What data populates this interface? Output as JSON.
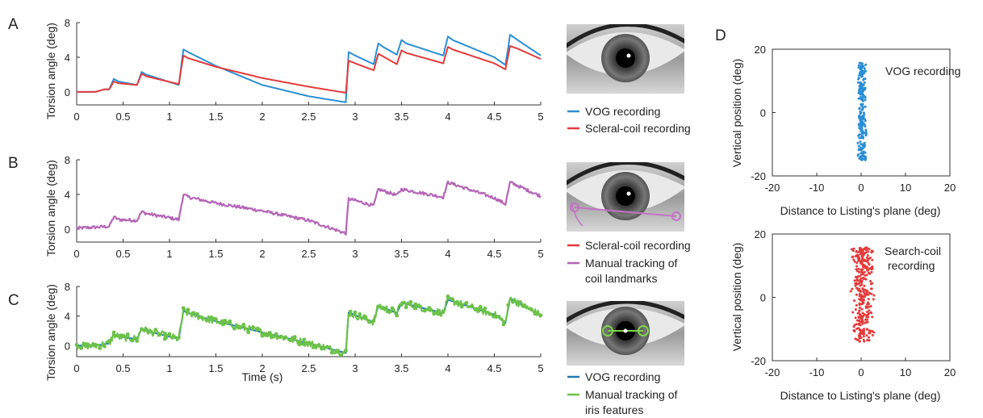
{
  "colors": {
    "vog": "#2b8fd4",
    "coil": "#e33b3b",
    "manual_coil": "#b565b8",
    "manual_iris": "#6cc24a",
    "vog_dark": "#1f78b4",
    "annot_green": "#7fd34a"
  },
  "panels": {
    "A": {
      "letter": "A",
      "ylabel": "Torsion angle (deg)",
      "legend": [
        "VOG recording",
        "Scleral-coil recording"
      ],
      "eye_icon": "eye-photo-icon"
    },
    "B": {
      "letter": "B",
      "ylabel": "Torsion angle (deg)",
      "legend": [
        "Scleral-coil recording",
        "Manual tracking of",
        "coil landmarks"
      ],
      "eye_icon": "eye-photo-coil-landmarks-icon"
    },
    "C": {
      "letter": "C",
      "ylabel": "Torsion angle (deg)",
      "xlabel": "Time (s)",
      "legend": [
        "VOG recording",
        "Manual tracking of",
        "iris features"
      ],
      "eye_icon": "eye-photo-iris-features-icon"
    },
    "D": {
      "letter": "D",
      "top": {
        "ylabel": "Vertical position (deg)",
        "xlabel": "Distance to Listing's plane (deg)",
        "annotation": "VOG recording"
      },
      "bottom": {
        "ylabel": "Vertical position (deg)",
        "xlabel": "Distance to Listing's plane (deg)",
        "annotation": [
          "Search-coil",
          "recording"
        ]
      }
    }
  },
  "chart_data": [
    {
      "type": "line",
      "id": "A",
      "xlim": [
        0,
        5
      ],
      "ylim": [
        -1.5,
        8
      ],
      "xticks": [
        0,
        0.5,
        1,
        1.5,
        2,
        2.5,
        3,
        3.5,
        4,
        4.5,
        5
      ],
      "yticks": [
        0,
        4,
        8
      ],
      "series": [
        {
          "name": "VOG recording",
          "color": "#2b8fd4",
          "x": [
            0,
            0.2,
            0.3,
            0.35,
            0.4,
            0.45,
            0.65,
            0.7,
            0.75,
            1.1,
            1.15,
            1.2,
            1.5,
            2.0,
            2.5,
            2.9,
            2.93,
            3.0,
            3.2,
            3.25,
            3.3,
            3.45,
            3.5,
            3.55,
            3.95,
            4.0,
            4.05,
            4.5,
            4.62,
            4.67,
            4.75,
            5.0
          ],
          "y": [
            0,
            0,
            0.3,
            0.3,
            1.5,
            1.2,
            0.8,
            2.3,
            2.0,
            0.8,
            4.9,
            4.6,
            3.0,
            0.8,
            -0.5,
            -1.2,
            4.6,
            4.2,
            3.2,
            5.6,
            5.2,
            4.3,
            6.0,
            5.6,
            4.2,
            6.4,
            6.0,
            4.0,
            3.1,
            6.6,
            6.0,
            4.2
          ]
        },
        {
          "name": "Scleral-coil recording",
          "color": "#e33b3b",
          "x": [
            0,
            0.2,
            0.3,
            0.35,
            0.4,
            0.45,
            0.65,
            0.7,
            0.75,
            1.1,
            1.15,
            1.2,
            1.5,
            2.0,
            2.5,
            2.9,
            2.93,
            3.0,
            3.2,
            3.25,
            3.3,
            3.45,
            3.5,
            3.55,
            3.95,
            4.0,
            4.05,
            4.5,
            4.62,
            4.67,
            4.75,
            5.0
          ],
          "y": [
            0,
            0,
            0.3,
            0.3,
            1.2,
            1.0,
            0.8,
            2.1,
            1.8,
            0.9,
            4.2,
            3.9,
            2.9,
            1.6,
            0.6,
            -0.1,
            3.6,
            3.3,
            2.5,
            4.4,
            4.1,
            3.2,
            4.8,
            4.5,
            3.3,
            5.2,
            4.9,
            3.3,
            2.6,
            5.3,
            5.0,
            3.8
          ]
        }
      ]
    },
    {
      "type": "line",
      "id": "B",
      "xlim": [
        0,
        5
      ],
      "ylim": [
        -1.5,
        8
      ],
      "xticks": [
        0,
        0.5,
        1,
        1.5,
        2,
        2.5,
        3,
        3.5,
        4,
        4.5,
        5
      ],
      "yticks": [
        0,
        4,
        8
      ],
      "series": [
        {
          "name": "Manual tracking of coil landmarks",
          "color": "#b565b8",
          "x": [
            0,
            0.35,
            0.4,
            0.45,
            0.65,
            0.7,
            0.75,
            1.1,
            1.15,
            1.2,
            1.5,
            2.0,
            2.5,
            2.9,
            2.93,
            3.0,
            3.2,
            3.25,
            3.45,
            3.5,
            3.95,
            4.0,
            4.5,
            4.62,
            4.67,
            5.0
          ],
          "y": [
            0.1,
            0.3,
            1.4,
            1.1,
            1.0,
            2.0,
            1.8,
            1.1,
            4.0,
            3.7,
            3.0,
            2.1,
            1.0,
            -0.5,
            3.5,
            3.3,
            2.7,
            4.6,
            3.9,
            4.6,
            3.7,
            5.4,
            3.6,
            2.9,
            5.4,
            3.8
          ],
          "noise": 0.3
        }
      ]
    },
    {
      "type": "line",
      "id": "C",
      "xlim": [
        0,
        5
      ],
      "ylim": [
        -1.5,
        8
      ],
      "xticks": [
        0,
        0.5,
        1,
        1.5,
        2,
        2.5,
        3,
        3.5,
        4,
        4.5,
        5
      ],
      "yticks": [
        0,
        4,
        8
      ],
      "xlabel": "Time (s)",
      "series": [
        {
          "name": "VOG recording",
          "color": "#1f78b4",
          "x": [
            0,
            0.2,
            0.35,
            0.4,
            0.45,
            0.65,
            0.7,
            0.75,
            1.1,
            1.15,
            1.2,
            1.5,
            2.0,
            2.5,
            2.9,
            2.93,
            3.0,
            3.2,
            3.25,
            3.45,
            3.5,
            3.95,
            4.0,
            4.5,
            4.62,
            4.67,
            5.0
          ],
          "y": [
            0,
            0,
            0.3,
            1.5,
            1.2,
            0.9,
            2.3,
            2.0,
            0.9,
            4.7,
            4.4,
            3.3,
            1.8,
            0.3,
            -1.0,
            4.5,
            4.1,
            3.2,
            5.4,
            4.4,
            5.8,
            4.4,
            6.2,
            4.2,
            3.1,
            6.4,
            4.1
          ]
        },
        {
          "name": "Manual tracking of iris features",
          "color": "#6cc24a",
          "x": [
            0,
            0.2,
            0.35,
            0.4,
            0.45,
            0.65,
            0.7,
            0.75,
            1.1,
            1.15,
            1.2,
            1.5,
            2.0,
            2.5,
            2.9,
            2.93,
            3.0,
            3.2,
            3.25,
            3.45,
            3.5,
            3.95,
            4.0,
            4.5,
            4.62,
            4.67,
            5.0
          ],
          "y": [
            0,
            0,
            0.3,
            1.5,
            1.2,
            0.9,
            2.3,
            2.0,
            0.9,
            4.7,
            4.4,
            3.3,
            1.8,
            0.3,
            -1.0,
            4.5,
            4.1,
            3.2,
            5.4,
            4.4,
            5.8,
            4.4,
            6.2,
            4.2,
            3.1,
            6.4,
            4.1
          ],
          "noise": 0.8,
          "markers": true
        }
      ]
    },
    {
      "type": "scatter",
      "id": "D-top",
      "xlim": [
        -20,
        20
      ],
      "ylim": [
        -20,
        20
      ],
      "xticks": [
        -20,
        -10,
        0,
        10,
        20
      ],
      "yticks": [
        -20,
        0,
        20
      ],
      "xlabel": "Distance to Listing's plane (deg)",
      "ylabel": "Vertical position (deg)",
      "series": [
        {
          "name": "VOG recording",
          "color": "#2b8fd4",
          "x_center": 0.2,
          "x_spread": 1.0,
          "y_range": [
            -15,
            16
          ],
          "count": 260
        }
      ]
    },
    {
      "type": "scatter",
      "id": "D-bottom",
      "xlim": [
        -20,
        20
      ],
      "ylim": [
        -20,
        20
      ],
      "xticks": [
        -20,
        -10,
        0,
        10,
        20
      ],
      "yticks": [
        -20,
        0,
        20
      ],
      "xlabel": "Distance to Listing's plane (deg)",
      "ylabel": "Vertical position (deg)",
      "series": [
        {
          "name": "Search-coil recording",
          "color": "#e33b3b",
          "x_center": 0.3,
          "x_spread": 2.8,
          "y_range": [
            -14,
            16
          ],
          "count": 320
        }
      ]
    }
  ]
}
